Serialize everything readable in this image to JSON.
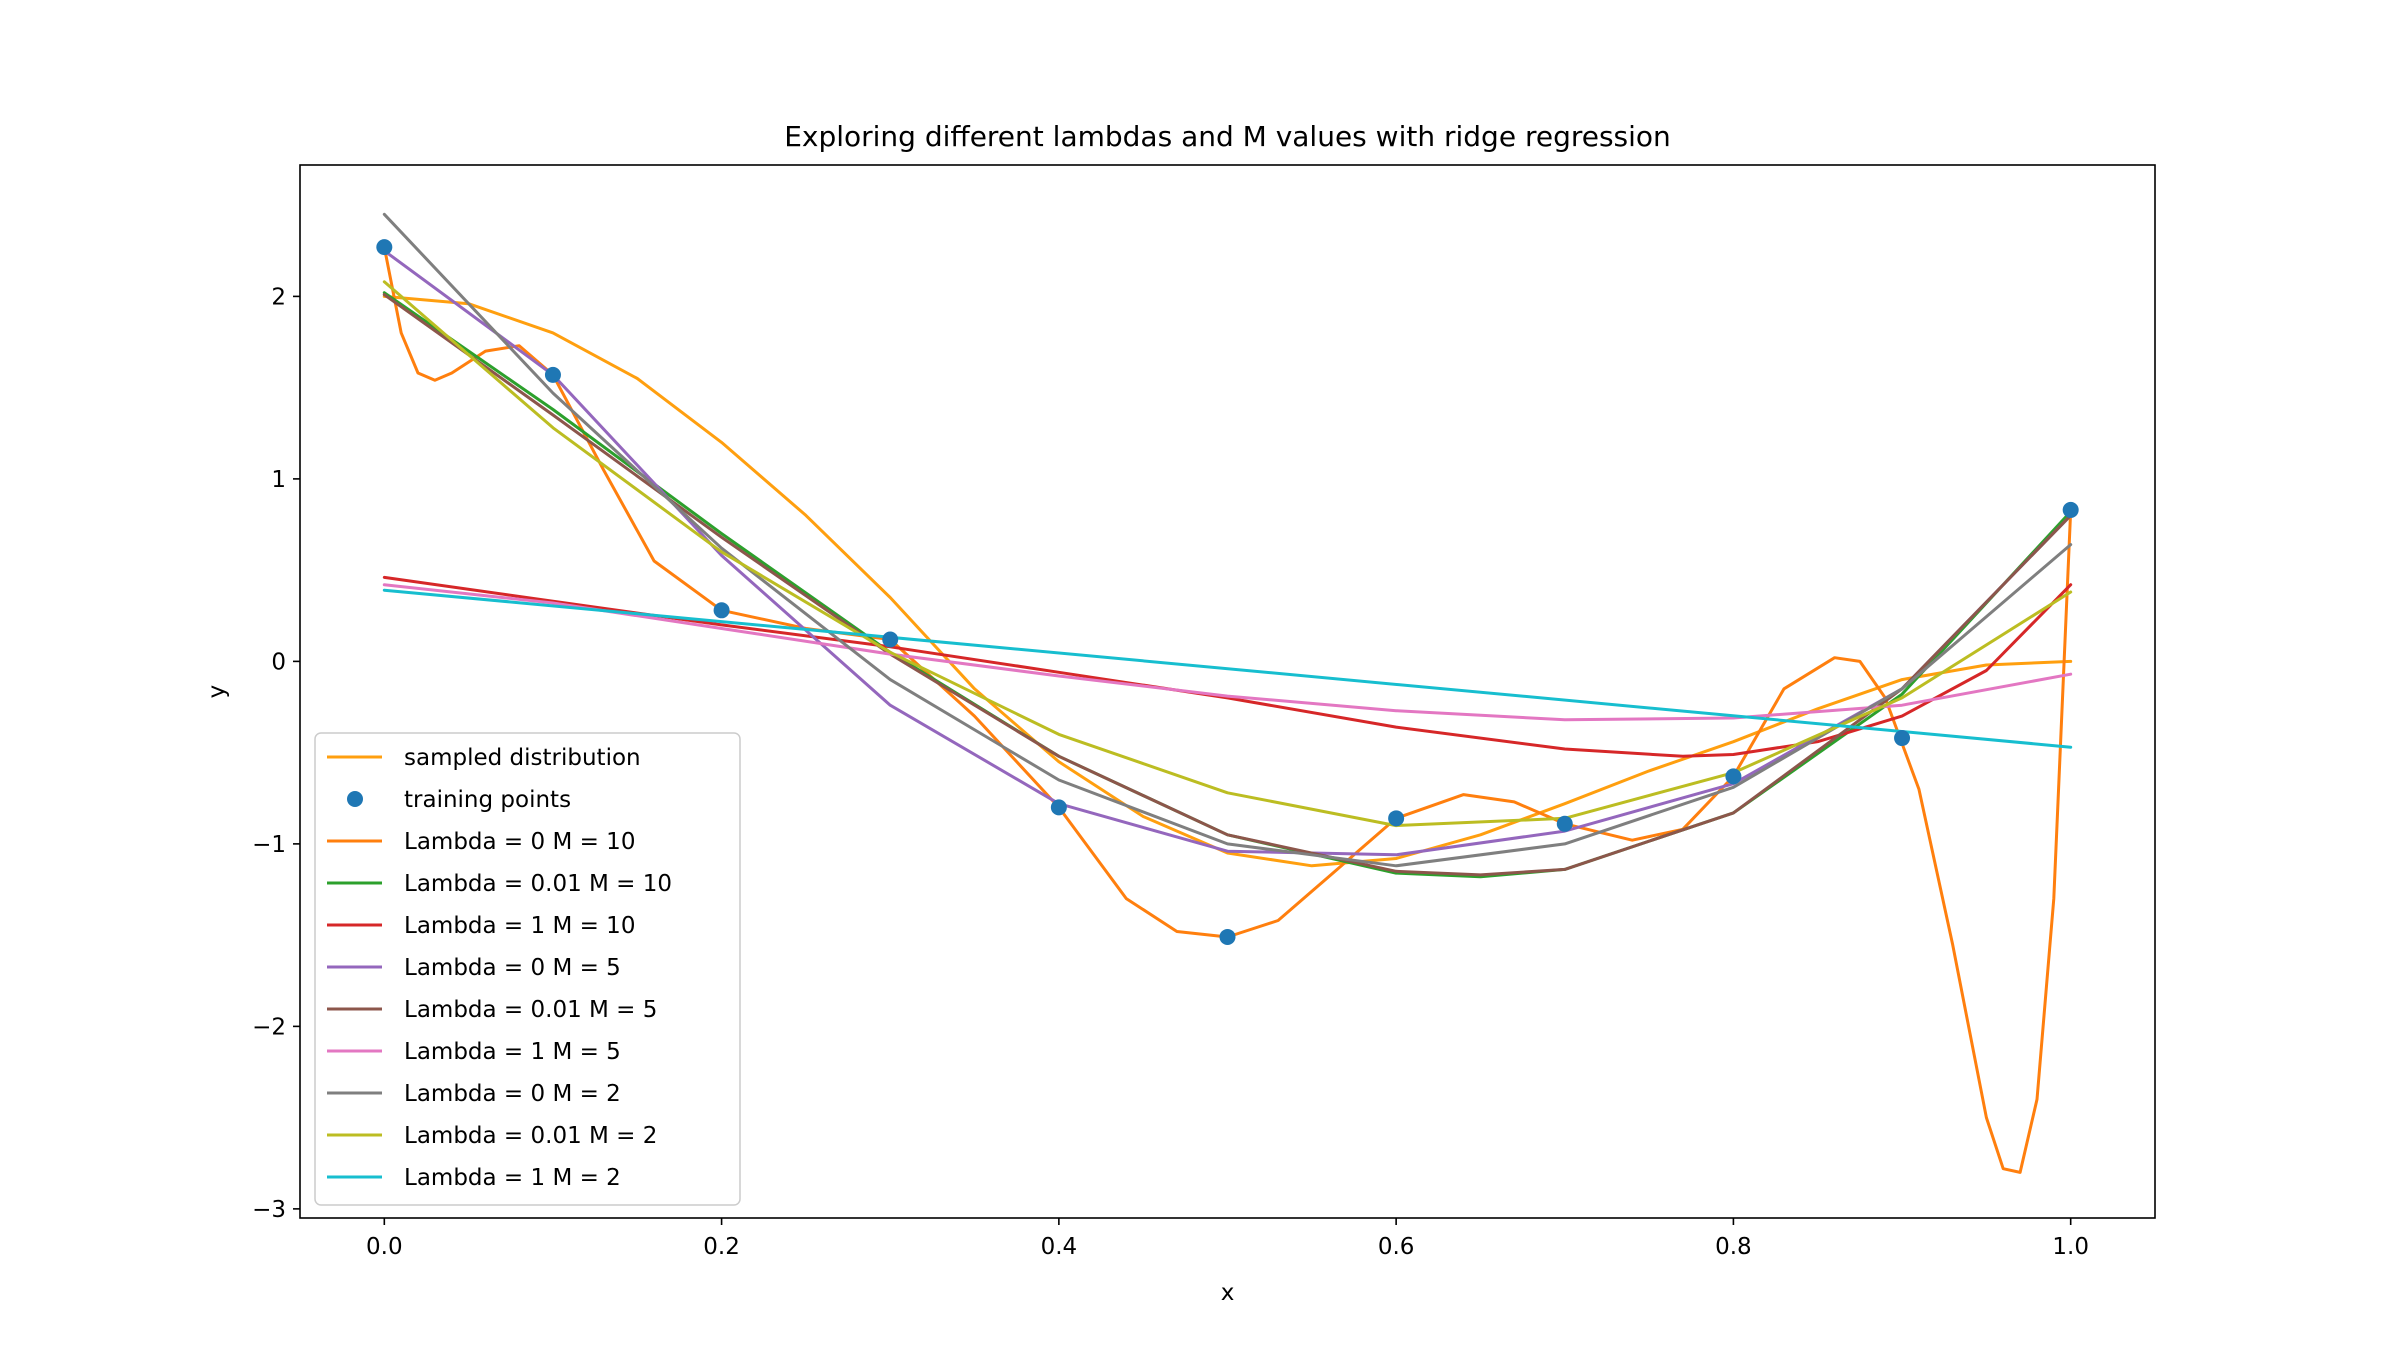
{
  "chart_data": {
    "type": "line",
    "title": "Exploring different lambdas and M values with ridge regression",
    "xlabel": "x",
    "ylabel": "y",
    "xlim": [
      -0.05,
      1.05
    ],
    "ylim": [
      -3.05,
      2.72
    ],
    "xticks": [
      0.0,
      0.2,
      0.4,
      0.6,
      0.8,
      1.0
    ],
    "xtick_labels": [
      "0.0",
      "0.2",
      "0.4",
      "0.6",
      "0.8",
      "1.0"
    ],
    "yticks": [
      -3,
      -2,
      -1,
      0,
      1,
      2
    ],
    "ytick_labels": [
      "−3",
      "−2",
      "−1",
      "0",
      "1",
      "2"
    ],
    "grid": false,
    "legend_position": "lower-left",
    "training_points": {
      "name": "training points",
      "color": "#1f77b4",
      "x": [
        0.0,
        0.1,
        0.2,
        0.3,
        0.4,
        0.5,
        0.6,
        0.7,
        0.8,
        0.9,
        1.0
      ],
      "y": [
        2.27,
        1.57,
        0.28,
        0.12,
        -0.8,
        -1.51,
        -0.86,
        -0.89,
        -0.63,
        -0.42,
        0.83
      ]
    },
    "series": [
      {
        "name": "sampled distribution",
        "color": "#ff9f0f",
        "x": [
          0.0,
          0.05,
          0.1,
          0.15,
          0.2,
          0.25,
          0.3,
          0.35,
          0.4,
          0.45,
          0.5,
          0.55,
          0.6,
          0.65,
          0.7,
          0.75,
          0.8,
          0.85,
          0.9,
          0.95,
          1.0
        ],
        "y": [
          2.0,
          1.96,
          1.8,
          1.55,
          1.2,
          0.8,
          0.35,
          -0.15,
          -0.55,
          -0.85,
          -1.05,
          -1.12,
          -1.08,
          -0.95,
          -0.78,
          -0.6,
          -0.44,
          -0.26,
          -0.1,
          -0.02,
          0.0
        ]
      },
      {
        "name": "Lambda = 0 M = 10",
        "color": "#ff7f0e",
        "x": [
          0.0,
          0.01,
          0.02,
          0.03,
          0.04,
          0.06,
          0.08,
          0.1,
          0.13,
          0.16,
          0.2,
          0.25,
          0.3,
          0.35,
          0.4,
          0.44,
          0.47,
          0.5,
          0.53,
          0.56,
          0.6,
          0.64,
          0.67,
          0.7,
          0.74,
          0.77,
          0.8,
          0.83,
          0.86,
          0.875,
          0.89,
          0.91,
          0.93,
          0.95,
          0.96,
          0.97,
          0.98,
          0.99,
          1.0
        ],
        "y": [
          2.27,
          1.8,
          1.58,
          1.54,
          1.58,
          1.7,
          1.73,
          1.57,
          1.05,
          0.55,
          0.28,
          0.18,
          0.12,
          -0.3,
          -0.8,
          -1.3,
          -1.48,
          -1.51,
          -1.42,
          -1.18,
          -0.86,
          -0.73,
          -0.77,
          -0.89,
          -0.98,
          -0.92,
          -0.63,
          -0.15,
          0.02,
          0.0,
          -0.2,
          -0.7,
          -1.55,
          -2.5,
          -2.78,
          -2.8,
          -2.4,
          -1.3,
          0.83
        ]
      },
      {
        "name": "Lambda = 0.01 M = 10",
        "color": "#2ca02c",
        "x": [
          0.0,
          0.1,
          0.2,
          0.3,
          0.4,
          0.5,
          0.6,
          0.65,
          0.7,
          0.8,
          0.9,
          1.0
        ],
        "y": [
          2.02,
          1.38,
          0.7,
          0.05,
          -0.52,
          -0.95,
          -1.16,
          -1.18,
          -1.14,
          -0.83,
          -0.18,
          0.82
        ]
      },
      {
        "name": "Lambda = 1 M = 10",
        "color": "#d62728",
        "x": [
          0.0,
          0.1,
          0.2,
          0.3,
          0.4,
          0.5,
          0.6,
          0.7,
          0.77,
          0.8,
          0.85,
          0.9,
          0.95,
          1.0
        ],
        "y": [
          0.46,
          0.33,
          0.2,
          0.08,
          -0.06,
          -0.2,
          -0.36,
          -0.48,
          -0.52,
          -0.51,
          -0.44,
          -0.3,
          -0.05,
          0.42
        ]
      },
      {
        "name": "Lambda = 0 M = 5",
        "color": "#9467bd",
        "x": [
          0.0,
          0.1,
          0.2,
          0.3,
          0.4,
          0.5,
          0.6,
          0.7,
          0.8,
          0.9,
          1.0
        ],
        "y": [
          2.25,
          1.57,
          0.58,
          -0.24,
          -0.78,
          -1.04,
          -1.06,
          -0.93,
          -0.67,
          -0.15,
          0.8
        ]
      },
      {
        "name": "Lambda = 0.01 M = 5",
        "color": "#8c564b",
        "x": [
          0.0,
          0.1,
          0.2,
          0.3,
          0.4,
          0.5,
          0.6,
          0.65,
          0.7,
          0.8,
          0.9,
          1.0
        ],
        "y": [
          2.01,
          1.35,
          0.68,
          0.04,
          -0.52,
          -0.95,
          -1.15,
          -1.17,
          -1.14,
          -0.83,
          -0.15,
          0.8
        ]
      },
      {
        "name": "Lambda = 1 M = 5",
        "color": "#e377c2",
        "x": [
          0.0,
          0.1,
          0.2,
          0.3,
          0.4,
          0.5,
          0.6,
          0.7,
          0.8,
          0.9,
          1.0
        ],
        "y": [
          0.42,
          0.32,
          0.18,
          0.04,
          -0.08,
          -0.19,
          -0.27,
          -0.32,
          -0.31,
          -0.24,
          -0.07
        ]
      },
      {
        "name": "Lambda = 0 M = 2",
        "color": "#7f7f7f",
        "x": [
          0.0,
          0.1,
          0.2,
          0.3,
          0.4,
          0.5,
          0.6,
          0.7,
          0.8,
          0.9,
          1.0
        ],
        "y": [
          2.45,
          1.47,
          0.62,
          -0.1,
          -0.65,
          -1.0,
          -1.12,
          -1.0,
          -0.69,
          -0.15,
          0.64
        ]
      },
      {
        "name": "Lambda = 0.01 M = 2",
        "color": "#bcbd22",
        "x": [
          0.0,
          0.1,
          0.2,
          0.3,
          0.4,
          0.5,
          0.6,
          0.7,
          0.8,
          0.9,
          1.0
        ],
        "y": [
          2.08,
          1.28,
          0.6,
          0.05,
          -0.4,
          -0.72,
          -0.9,
          -0.86,
          -0.61,
          -0.2,
          0.38
        ]
      },
      {
        "name": "Lambda = 1 M = 2",
        "color": "#17becf",
        "x": [
          0.0,
          1.0
        ],
        "y": [
          0.39,
          -0.47
        ]
      }
    ]
  }
}
